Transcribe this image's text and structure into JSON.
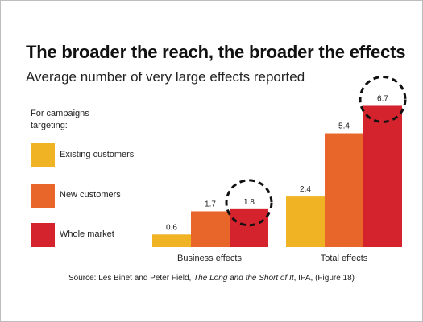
{
  "title": "The broader the reach, the broader the effects",
  "subtitle": "Average number of very large effects reported",
  "legend": {
    "title": "For campaigns targeting:",
    "items": [
      {
        "label": "Existing customers",
        "color": "#F0B323"
      },
      {
        "label": "New customers",
        "color": "#E8662A"
      },
      {
        "label": "Whole market",
        "color": "#D4232D"
      }
    ]
  },
  "source": {
    "prefix": "Source: Les Binet and Peter Field, ",
    "work": "The Long and the Short of It",
    "suffix": ", IPA, (Figure 18)"
  },
  "chart_data": {
    "type": "bar",
    "categories": [
      "Business effects",
      "Total effects"
    ],
    "series": [
      {
        "name": "Existing customers",
        "values": [
          0.6,
          2.4
        ],
        "color": "#F0B323"
      },
      {
        "name": "New customers",
        "values": [
          1.7,
          5.4
        ],
        "color": "#E8662A"
      },
      {
        "name": "Whole market",
        "values": [
          1.8,
          6.7
        ],
        "color": "#D4232D"
      }
    ],
    "data_labels": [
      [
        "0.6",
        "1.7",
        "1.8"
      ],
      [
        "2.4",
        "5.4",
        "6.7"
      ]
    ],
    "highlighted": [
      {
        "category": 0,
        "series": 2
      },
      {
        "category": 1,
        "series": 2
      }
    ],
    "highlight_style": "dashed-circle",
    "axes_visible": false,
    "grid": false,
    "legend_position": "left"
  }
}
